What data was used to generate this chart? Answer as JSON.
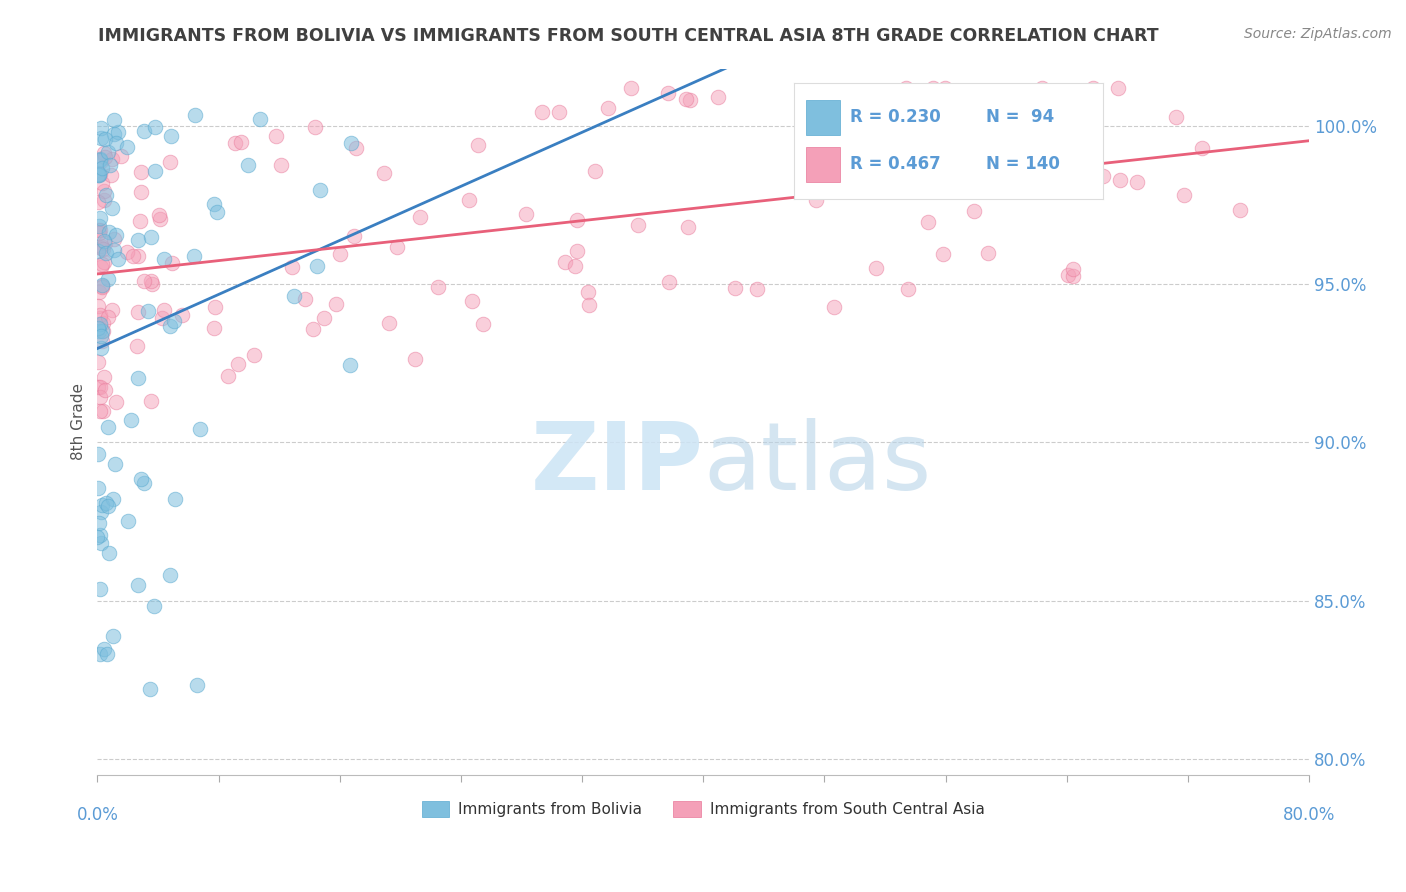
{
  "title": "IMMIGRANTS FROM BOLIVIA VS IMMIGRANTS FROM SOUTH CENTRAL ASIA 8TH GRADE CORRELATION CHART",
  "source": "Source: ZipAtlas.com",
  "ylabel": "8th Grade",
  "yaxis_ticks": [
    80.0,
    85.0,
    90.0,
    95.0,
    100.0
  ],
  "xlim": [
    0.0,
    80.0
  ],
  "ylim": [
    79.5,
    101.8
  ],
  "bolivia_R": 0.23,
  "bolivia_N": 94,
  "sca_R": 0.467,
  "sca_N": 140,
  "bolivia_color": "#7fbfde",
  "bolivia_edge_color": "#5aaad0",
  "sca_color": "#f4a0b8",
  "sca_edge_color": "#e87899",
  "bolivia_line_color": "#3a7fc1",
  "sca_line_color": "#e8607a",
  "legend_color": "#4472c4",
  "watermark_color": "#cce4f5",
  "background_color": "#ffffff",
  "grid_color": "#cccccc",
  "axis_label_color": "#5b9bd5",
  "title_color": "#404040",
  "ylabel_color": "#555555"
}
